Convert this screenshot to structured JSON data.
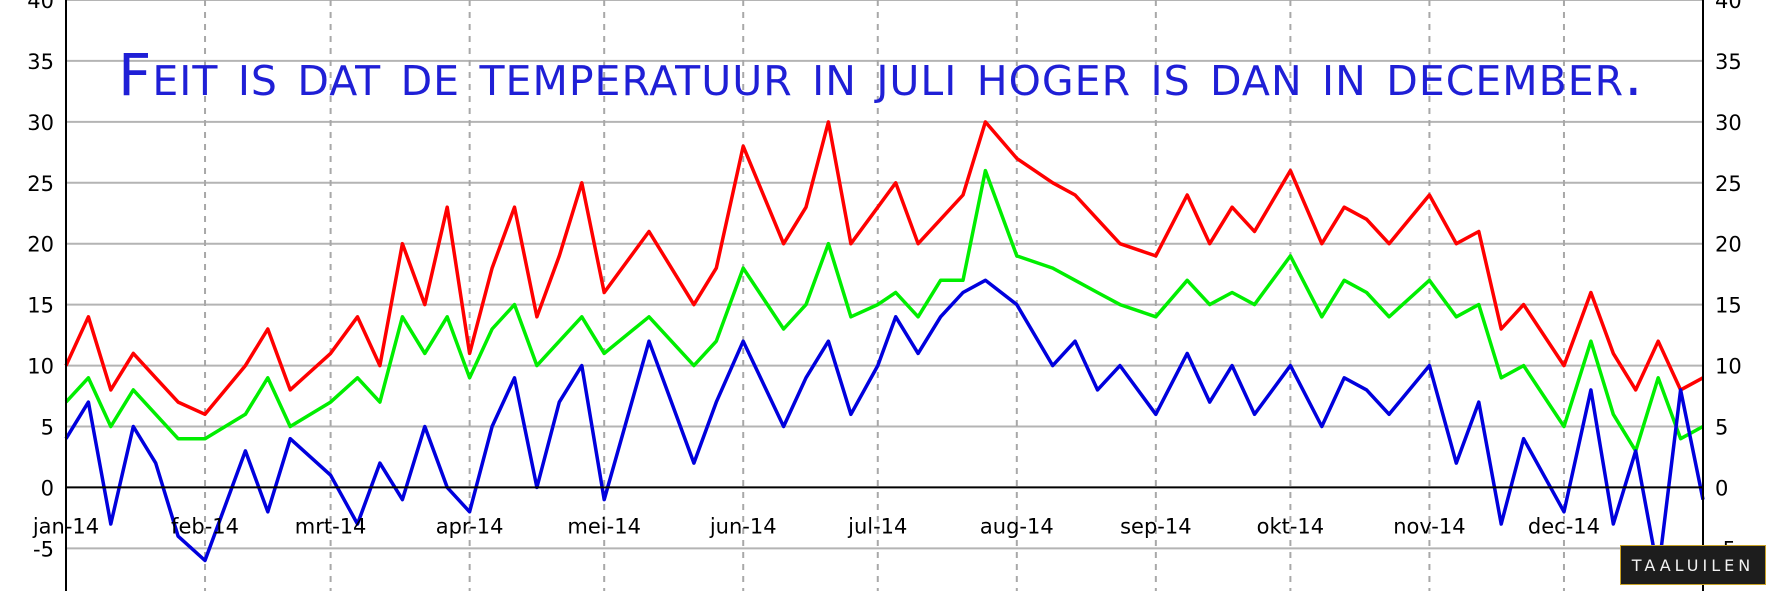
{
  "headline": "Feit is dat de temperatuur in juli hoger is dan in december.",
  "watermark": "TAALUILEN",
  "chart_data": {
    "type": "line",
    "title": "",
    "xlabel": "",
    "ylabel": "",
    "ylim": [
      -8.5,
      40
    ],
    "yticks": [
      -5,
      0,
      5,
      10,
      15,
      20,
      25,
      30,
      35,
      40
    ],
    "ytick_labels": [
      "-5",
      "0",
      "5",
      "10",
      "15",
      "20",
      "25",
      "30",
      "35",
      "40"
    ],
    "xlim": [
      0,
      365
    ],
    "xtick_positions": [
      0,
      31,
      59,
      90,
      120,
      151,
      181,
      212,
      243,
      273,
      304,
      334
    ],
    "xtick_labels": [
      "jan-14",
      "feb-14",
      "mrt-14",
      "apr-14",
      "mei-14",
      "jun-14",
      "jul-14",
      "aug-14",
      "sep-14",
      "okt-14",
      "nov-14",
      "dec-14"
    ],
    "grid": true,
    "colors": {
      "max": "#ff0000",
      "mean": "#00ee00",
      "min": "#0000dd"
    },
    "series": [
      {
        "key": "max",
        "color": "#ff0000",
        "x": [
          0,
          5,
          10,
          15,
          20,
          25,
          31,
          40,
          45,
          50,
          59,
          65,
          70,
          75,
          80,
          85,
          90,
          95,
          100,
          105,
          110,
          115,
          120,
          130,
          140,
          145,
          151,
          160,
          165,
          170,
          175,
          181,
          185,
          190,
          195,
          200,
          205,
          212,
          220,
          225,
          230,
          235,
          243,
          250,
          255,
          260,
          265,
          273,
          280,
          285,
          290,
          295,
          304,
          310,
          315,
          320,
          325,
          334,
          340,
          345,
          350,
          355,
          360,
          365
        ],
        "y": [
          10,
          14,
          8,
          11,
          9,
          7,
          6,
          10,
          13,
          8,
          11,
          14,
          10,
          20,
          15,
          23,
          11,
          18,
          23,
          14,
          19,
          25,
          16,
          21,
          15,
          18,
          28,
          20,
          23,
          30,
          20,
          23,
          25,
          20,
          22,
          24,
          30,
          27,
          25,
          24,
          22,
          20,
          19,
          24,
          20,
          23,
          21,
          26,
          20,
          23,
          22,
          20,
          24,
          20,
          21,
          13,
          15,
          10,
          16,
          11,
          8,
          12,
          8,
          9
        ]
      },
      {
        "key": "mean",
        "color": "#00ee00",
        "x": [
          0,
          5,
          10,
          15,
          20,
          25,
          31,
          40,
          45,
          50,
          59,
          65,
          70,
          75,
          80,
          85,
          90,
          95,
          100,
          105,
          110,
          115,
          120,
          130,
          140,
          145,
          151,
          160,
          165,
          170,
          175,
          181,
          185,
          190,
          195,
          200,
          205,
          212,
          220,
          225,
          230,
          235,
          243,
          250,
          255,
          260,
          265,
          273,
          280,
          285,
          290,
          295,
          304,
          310,
          315,
          320,
          325,
          334,
          340,
          345,
          350,
          355,
          360,
          365
        ],
        "y": [
          7,
          9,
          5,
          8,
          6,
          4,
          4,
          6,
          9,
          5,
          7,
          9,
          7,
          14,
          11,
          14,
          9,
          13,
          15,
          10,
          12,
          14,
          11,
          14,
          10,
          12,
          18,
          13,
          15,
          20,
          14,
          15,
          16,
          14,
          17,
          17,
          26,
          19,
          18,
          17,
          16,
          15,
          14,
          17,
          15,
          16,
          15,
          19,
          14,
          17,
          16,
          14,
          17,
          14,
          15,
          9,
          10,
          5,
          12,
          6,
          3,
          9,
          4,
          5
        ]
      },
      {
        "key": "min",
        "color": "#0000dd",
        "x": [
          0,
          5,
          10,
          15,
          20,
          25,
          31,
          40,
          45,
          50,
          59,
          65,
          70,
          75,
          80,
          85,
          90,
          95,
          100,
          105,
          110,
          115,
          120,
          130,
          140,
          145,
          151,
          160,
          165,
          170,
          175,
          181,
          185,
          190,
          195,
          200,
          205,
          212,
          220,
          225,
          230,
          235,
          243,
          250,
          255,
          260,
          265,
          273,
          280,
          285,
          290,
          295,
          304,
          310,
          315,
          320,
          325,
          334,
          340,
          345,
          350,
          355,
          360,
          365
        ],
        "y": [
          4,
          7,
          -3,
          5,
          2,
          -4,
          -6,
          3,
          -2,
          4,
          1,
          -3,
          2,
          -1,
          5,
          0,
          -2,
          5,
          9,
          0,
          7,
          10,
          -1,
          12,
          2,
          7,
          12,
          5,
          9,
          12,
          6,
          10,
          14,
          11,
          14,
          16,
          17,
          15,
          10,
          12,
          8,
          10,
          6,
          11,
          7,
          10,
          6,
          10,
          5,
          9,
          8,
          6,
          10,
          2,
          7,
          -3,
          4,
          -2,
          8,
          -3,
          3,
          -7,
          8,
          -1
        ]
      }
    ]
  }
}
